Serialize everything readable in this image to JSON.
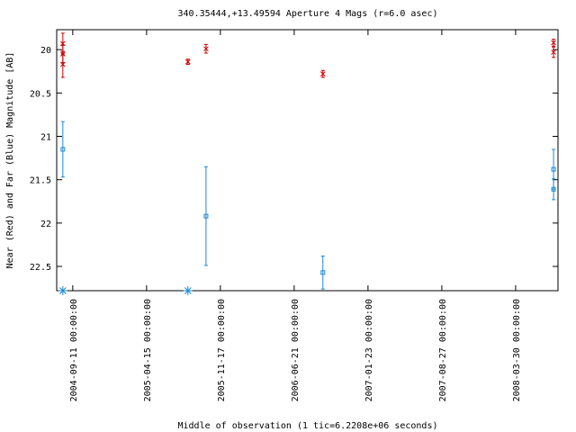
{
  "chart_data": {
    "type": "errorbar-scatter",
    "title": "340.35444,+13.49594   Aperture 4 Mags (r=6.0 asec)",
    "x_label": "Middle of observation (1 tic=6.2208e+06 seconds)",
    "y_label": "Near (Red) and Far (Blue) Magnitude [AB]",
    "xlim": [
      "2004-07-26 00:00:00",
      "2008-08-01 00:00:00"
    ],
    "xticks": [
      "2004-09-11 00:00:00",
      "2005-04-15 00:00:00",
      "2005-11-17 00:00:00",
      "2006-06-21 00:00:00",
      "2007-01-23 00:00:00",
      "2007-08-27 00:00:00",
      "2008-03-30 00:00:00"
    ],
    "ylim": [
      19.77,
      22.78
    ],
    "y_inverted": true,
    "yticks": [
      20,
      20.5,
      21,
      21.5,
      22,
      22.5
    ],
    "grid": false,
    "series": [
      {
        "color": "#cc0000",
        "marker": "x",
        "x": [
          "2004-08-13 00:00:00",
          "2004-08-13 00:00:00",
          "2004-08-13 00:00:00",
          "2005-08-14 00:00:00",
          "2005-10-06 00:00:00",
          "2006-09-13 00:00:00",
          "2008-07-19 00:00:00",
          "2008-07-19 00:00:00"
        ],
        "values": [
          19.93,
          20.05,
          20.17,
          20.14,
          19.99,
          20.28,
          19.92,
          20.03
        ],
        "errors": [
          0.12,
          0.1,
          0.15,
          0.03,
          0.05,
          0.04,
          0.04,
          0.06
        ]
      },
      {
        "color": "#1a8ad4",
        "marker": "square",
        "x": [
          "2004-08-13 00:00:00",
          "2005-10-06 00:00:00",
          "2006-09-13 00:00:00",
          "2008-07-19 00:00:00",
          "2008-07-19 00:00:00"
        ],
        "values": [
          21.15,
          21.92,
          22.57,
          21.38,
          21.61
        ],
        "errors": [
          0.32,
          0.57,
          0.19,
          0.23,
          0.12
        ]
      },
      {
        "color": "#1a8ad4",
        "marker": "star",
        "x": [
          "2004-08-13 00:00:00",
          "2005-08-14 00:00:00"
        ],
        "values": [
          22.78,
          22.78
        ]
      }
    ]
  }
}
